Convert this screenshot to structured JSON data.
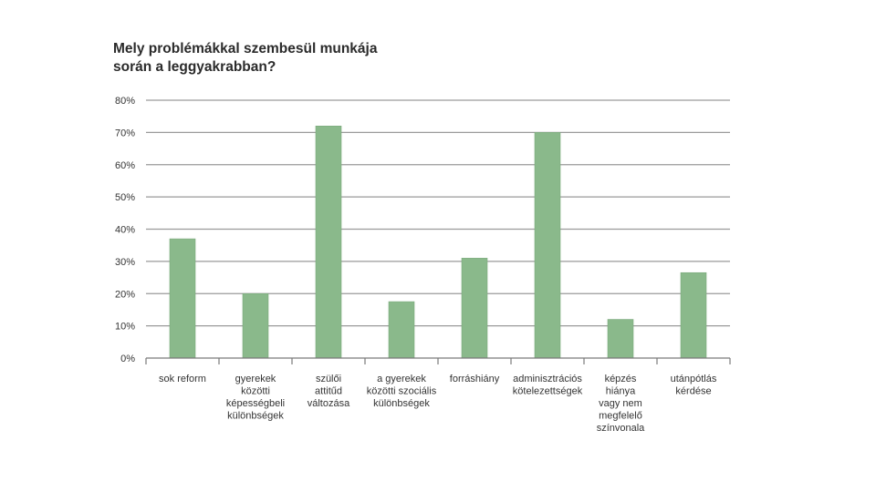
{
  "chart_data": {
    "type": "bar",
    "title_lines": [
      "Mely problémákkal szembesül munkája",
      "során a leggyakrabban?"
    ],
    "categories": [
      [
        "sok reform"
      ],
      [
        "gyerekek",
        "közötti",
        "képességbeli",
        "különbségek"
      ],
      [
        "szülői",
        "attitűd",
        "változása"
      ],
      [
        "a gyerekek",
        "közötti szociális",
        "különbségek"
      ],
      [
        "forráshiány"
      ],
      [
        "adminisztrációs",
        "kötelezettségek"
      ],
      [
        "képzés",
        "hiánya",
        "vagy nem",
        "megfelelő",
        "színvonala"
      ],
      [
        "utánpótlás",
        "kérdése"
      ]
    ],
    "values": [
      37,
      20,
      72,
      17.5,
      31,
      70,
      12,
      26.5
    ],
    "ylim": [
      0,
      80
    ],
    "yticks": [
      "0%",
      "10%",
      "20%",
      "30%",
      "40%",
      "50%",
      "60%",
      "70%",
      "80%"
    ],
    "grid": true,
    "colors": {
      "bar": "#8ab98b",
      "bar_edge": "#7aa97b",
      "grid": "#9a9a9a",
      "axis": "#7a7a7a"
    }
  }
}
